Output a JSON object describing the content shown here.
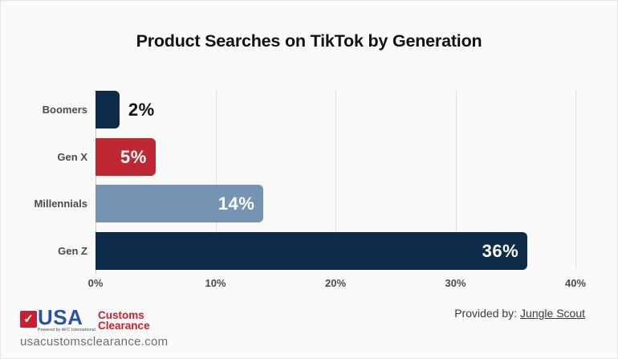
{
  "title": "Product Searches on TikTok by Generation",
  "chart_data": {
    "type": "bar",
    "orientation": "horizontal",
    "title": "Product Searches on TikTok by Generation",
    "categories": [
      "Boomers",
      "Gen X",
      "Millennials",
      "Gen Z"
    ],
    "values": [
      2,
      5,
      14,
      36
    ],
    "value_labels": [
      "2%",
      "5%",
      "14%",
      "36%"
    ],
    "bar_colors": [
      "#0e2c4a",
      "#bf2832",
      "#7593b3",
      "#0e2c4a"
    ],
    "label_inside": [
      false,
      true,
      true,
      true
    ],
    "x_ticks": [
      "0%",
      "10%",
      "20%",
      "30%",
      "40%"
    ],
    "x_tick_values": [
      0,
      10,
      20,
      30,
      40
    ],
    "xlim": [
      0,
      40
    ],
    "xlabel": "",
    "ylabel": "",
    "grid": "vertical-only",
    "legend": "none"
  },
  "colors": {
    "background": "#fafafa",
    "navy": "#0e2c4a",
    "red": "#bf2832",
    "slate_blue": "#7593b3",
    "gridline": "#e0e0e0",
    "axis_line": "#c6c6c6",
    "logo_red": "#c8202f",
    "logo_blue": "#2b51a3"
  },
  "footer": {
    "logo": {
      "checkmark_glyph": "✓",
      "usa": "USA",
      "powered_by": "Powered by AFC International",
      "customs": "Customs",
      "clearance": "Clearance"
    },
    "website": "usacustomsclearance.com",
    "provided_by_prefix": "Provided by:",
    "provided_by_link": "Jungle Scout"
  }
}
